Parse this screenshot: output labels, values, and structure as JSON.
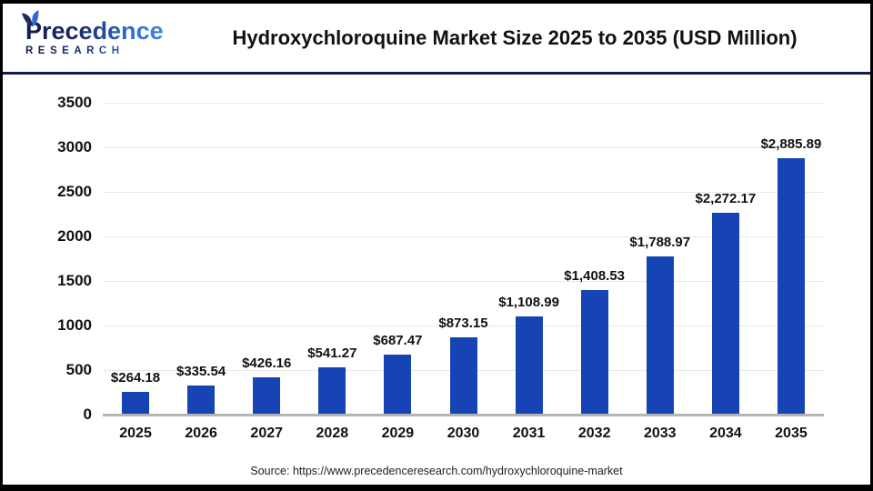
{
  "header": {
    "logo": {
      "line1": "Precedence",
      "line2": "RESEARCH"
    },
    "title": "Hydroxychloroquine Market Size 2025 to 2035 (USD Million)"
  },
  "chart_data": {
    "type": "bar",
    "title": "Hydroxychloroquine Market Size 2025 to 2035 (USD Million)",
    "categories": [
      "2025",
      "2026",
      "2027",
      "2028",
      "2029",
      "2030",
      "2031",
      "2032",
      "2033",
      "2034",
      "2035"
    ],
    "values": [
      264.18,
      335.54,
      426.16,
      541.27,
      687.47,
      873.15,
      1108.99,
      1408.53,
      1788.97,
      2272.17,
      2885.89
    ],
    "value_labels": [
      "$264.18",
      "$335.54",
      "$426.16",
      "$541.27",
      "$687.47",
      "$873.15",
      "$1,108.99",
      "$1,408.53",
      "$1,788.97",
      "$2,272.17",
      "$2,885.89"
    ],
    "xlabel": "",
    "ylabel": "",
    "ylim": [
      0,
      3500
    ],
    "yticks": [
      0,
      500,
      1000,
      1500,
      2000,
      2500,
      3000,
      3500
    ],
    "grid": true,
    "legend": "none",
    "bar_color": "#1644b4"
  },
  "footer": {
    "source": "Source: https://www.precedenceresearch.com/hydroxychloroquine-market"
  },
  "colors": {
    "bar": "#1644b4",
    "gridline": "#e8e8e8",
    "axis_baseline": "#b5b5b5",
    "header_divider": "#141b4d",
    "logo_dark": "#1c2a68",
    "logo_blue": "#2e6bd0",
    "title_text": "#111111"
  }
}
